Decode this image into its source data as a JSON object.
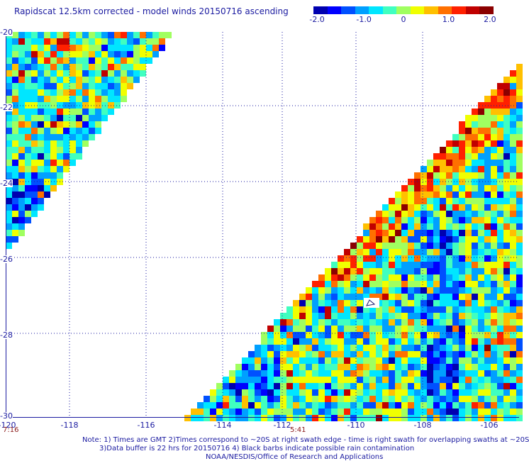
{
  "title": "Rapidscat 12.5km corrected - model winds 20150716 ascending",
  "colorbar": {
    "ticks": [
      "-2.0",
      "-1.0",
      "0",
      "1.0",
      "2.0"
    ],
    "colors": [
      "#0000b0",
      "#0000ff",
      "#0050ff",
      "#00a0ff",
      "#00e6ff",
      "#40ffc0",
      "#a0ff60",
      "#f0ff00",
      "#ffc000",
      "#ff7000",
      "#ff2000",
      "#c00000",
      "#8b0000"
    ]
  },
  "axes": {
    "lat_labels": [
      "-20",
      "-22",
      "-24",
      "-26",
      "-28",
      "-30"
    ],
    "lon_labels": [
      "-120",
      "-118",
      "-116",
      "-114",
      "-112",
      "-110",
      "-108",
      "-106"
    ]
  },
  "times": {
    "left": "7:16",
    "middle": "5:41"
  },
  "notes": [
    "Note: 1) Times are GMT 2)Times correspond to ~20S at right swath edge - time is right swath for overlapping swaths at ~20S",
    "3)Data buffer is 22 hrs for 20150716 4) Black barbs indicate possible rain contamination",
    "NOAA/NESDIS/Office of Research and Applications"
  ]
}
